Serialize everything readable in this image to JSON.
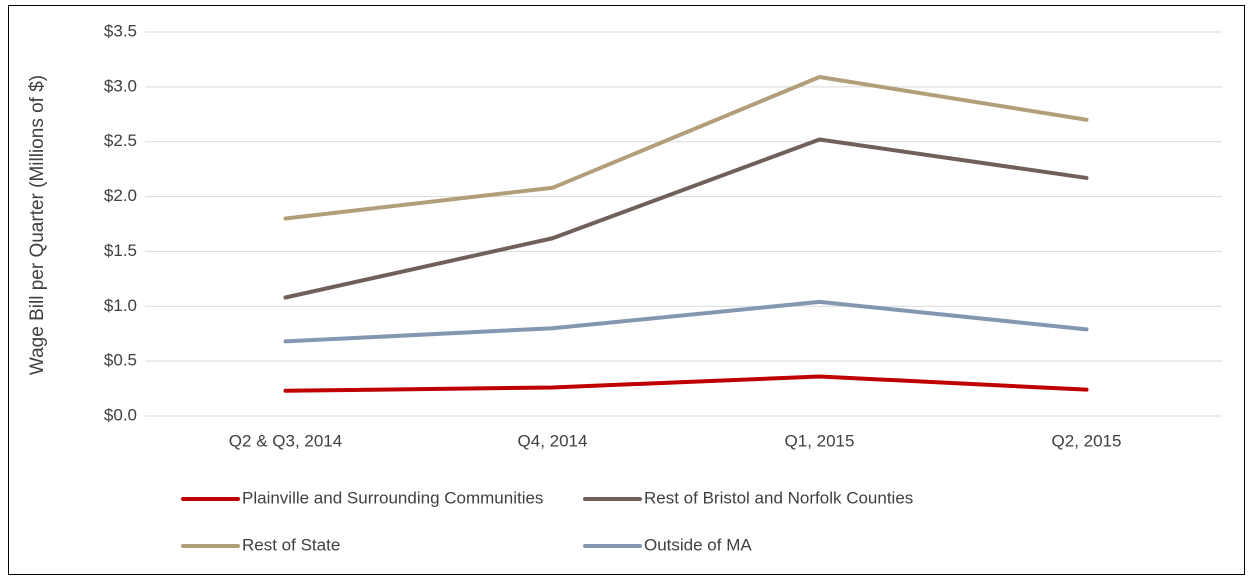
{
  "chart_data": {
    "type": "line",
    "y_axis_label": "Wage Bill per Quarter (Millions of $)",
    "categories": [
      "Q2 & Q3, 2014",
      "Q4, 2014",
      "Q1, 2015",
      "Q2, 2015"
    ],
    "series": [
      {
        "name": "Plainville and Surrounding Communities",
        "color": "#c00000",
        "values": [
          0.23,
          0.26,
          0.36,
          0.24
        ]
      },
      {
        "name": "Rest of Bristol and Norfolk Counties",
        "color": "#71605a",
        "values": [
          1.08,
          1.62,
          2.52,
          2.17
        ]
      },
      {
        "name": "Rest of State",
        "color": "#b39e7a",
        "values": [
          1.8,
          2.08,
          3.09,
          2.7
        ]
      },
      {
        "name": "Outside of MA",
        "color": "#8497b0",
        "values": [
          0.68,
          0.8,
          1.04,
          0.79
        ]
      }
    ],
    "ylim": [
      0,
      3.5
    ],
    "yticks": [
      {
        "value": 0,
        "label": "$0.0"
      },
      {
        "value": 0.5,
        "label": "$0.5"
      },
      {
        "value": 1,
        "label": "$1.0"
      },
      {
        "value": 1.5,
        "label": "$1.5"
      },
      {
        "value": 2,
        "label": "$2.0"
      },
      {
        "value": 2.5,
        "label": "$2.5"
      },
      {
        "value": 3,
        "label": "$3.0"
      },
      {
        "value": 3.5,
        "label": "$3.5"
      }
    ],
    "grid": true,
    "legend": "bottom"
  }
}
